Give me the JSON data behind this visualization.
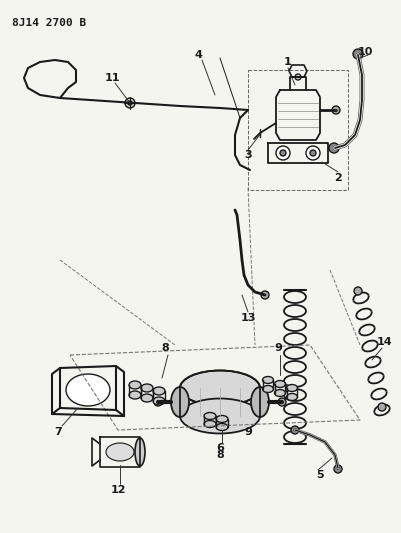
{
  "title": "8J142700B",
  "bg_color": "#f5f5f0",
  "line_color": "#1a1a1a",
  "fig_width": 4.02,
  "fig_height": 5.33,
  "dpi": 100
}
